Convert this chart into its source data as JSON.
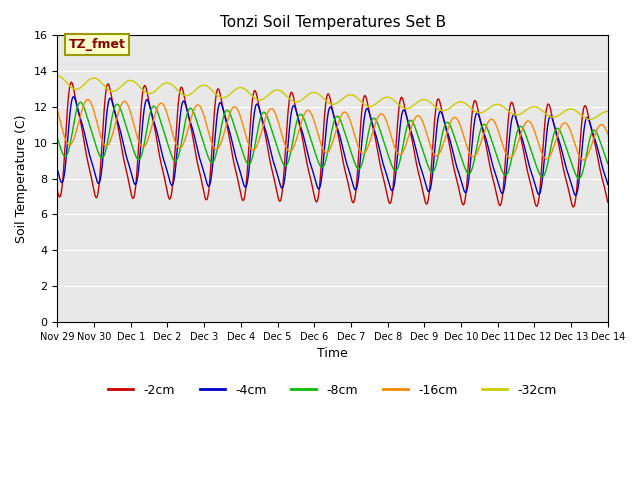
{
  "title": "Tonzi Soil Temperatures Set B",
  "xlabel": "Time",
  "ylabel": "Soil Temperature (C)",
  "ylim": [
    0,
    16
  ],
  "yticks": [
    0,
    2,
    4,
    6,
    8,
    10,
    12,
    14,
    16
  ],
  "plot_bg_color": "#e8e8e8",
  "colors": {
    "-2cm": "#cc0000",
    "-4cm": "#0000cc",
    "-8cm": "#00bb00",
    "-16cm": "#ff8800",
    "-32cm": "#cccc00"
  },
  "legend_label": "TZ_fmet",
  "tick_labels": [
    "Nov 29",
    "Nov 30",
    "Dec 1",
    "Dec 2",
    "Dec 3",
    "Dec 4",
    "Dec 5",
    "Dec 6",
    "Dec 7",
    "Dec 8",
    "Dec 9",
    "Dec 10",
    "Dec 11",
    "Dec 12",
    "Dec 13",
    "Dec 14"
  ]
}
